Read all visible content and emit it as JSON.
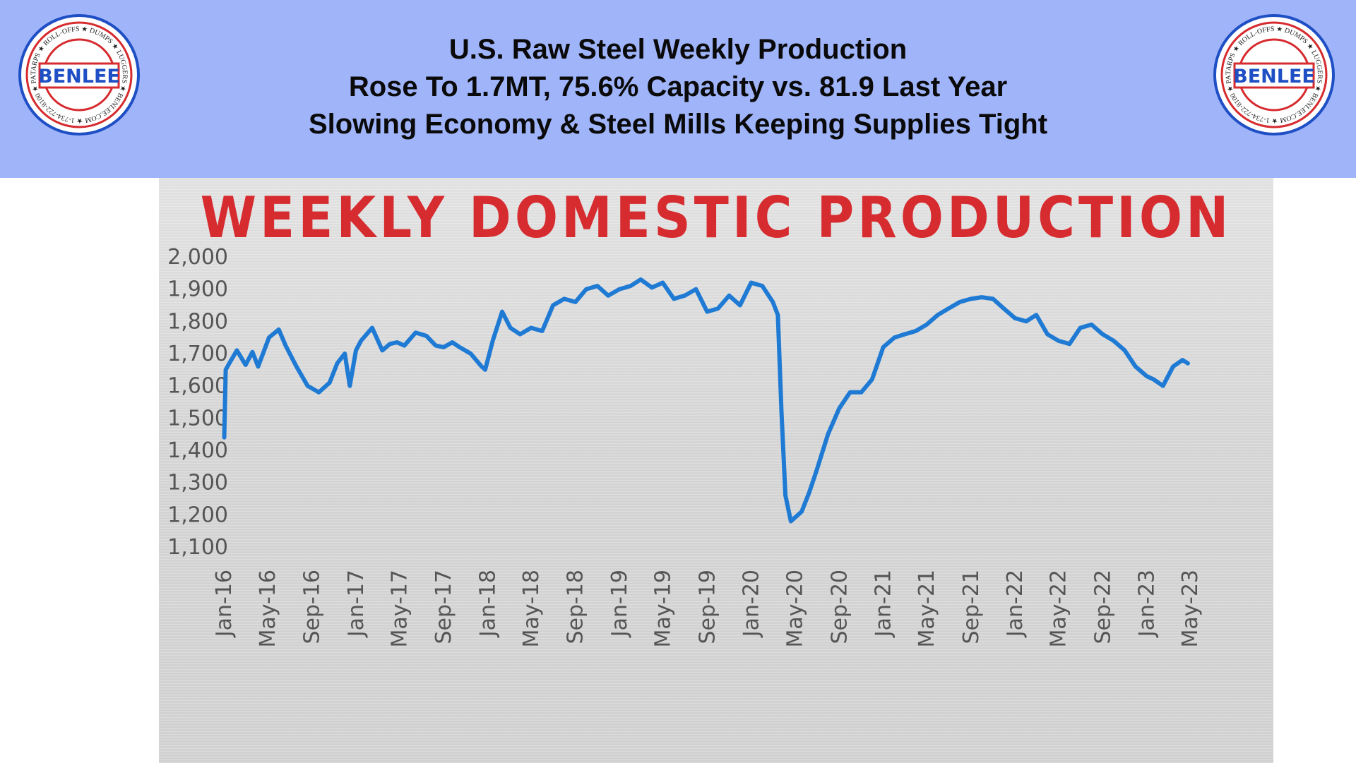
{
  "header": {
    "line1": "U.S. Raw Steel Weekly Production",
    "line2": "Rose To 1.7MT, 75.6% Capacity vs. 81.9 Last Year",
    "line3": "Slowing Economy & Steel Mills Keeping Supplies Tight"
  },
  "logo": {
    "brand": "BENLEE",
    "ring_text": "TARPS ★ ROLL-OFFS ★ DUMPS ★ LUGGERS ★ BENLEE.COM ★ 1-734-722-8100 ★ PARTS ★",
    "colors": {
      "ring": "#d62b2f",
      "brand": "#1f4fc4",
      "outline": "#1f4fc4"
    }
  },
  "colors": {
    "header_bg": "#a0b4fa",
    "title": "#d62b2f",
    "line": "#1f7ad4"
  },
  "chart_data": {
    "type": "line",
    "title": "WEEKLY DOMESTIC PRODUCTION",
    "xlabel": "",
    "ylabel": "",
    "ylim": [
      1100,
      2000
    ],
    "yticks": [
      "2,000",
      "1,900",
      "1,800",
      "1,700",
      "1,600",
      "1,500",
      "1,400",
      "1,300",
      "1,200",
      "1,100"
    ],
    "ytick_values": [
      2000,
      1900,
      1800,
      1700,
      1600,
      1500,
      1400,
      1300,
      1200,
      1100
    ],
    "xticks": [
      "Jan-16",
      "May-16",
      "Sep-16",
      "Jan-17",
      "May-17",
      "Sep-17",
      "Jan-18",
      "May-18",
      "Sep-18",
      "Jan-19",
      "May-19",
      "Sep-19",
      "Jan-20",
      "May-20",
      "Sep-20",
      "Jan-21",
      "May-21",
      "Sep-21",
      "Jan-22",
      "May-22",
      "Sep-22",
      "Jan-23",
      "May-23"
    ],
    "grid": false,
    "legend": "none",
    "series": [
      {
        "x": [
          "2016-01-02",
          "2016-01-06",
          "2016-01-16",
          "2016-02-06",
          "2016-03-01",
          "2016-03-20",
          "2016-04-05",
          "2016-05-05",
          "2016-06-01",
          "2016-06-20",
          "2016-07-20",
          "2016-08-20",
          "2016-09-20",
          "2016-10-20",
          "2016-11-10",
          "2016-12-01",
          "2016-12-15",
          "2017-01-01",
          "2017-01-15",
          "2017-02-15",
          "2017-03-15",
          "2017-04-05",
          "2017-04-25",
          "2017-05-15",
          "2017-06-15",
          "2017-07-15",
          "2017-08-10",
          "2017-09-01",
          "2017-09-25",
          "2017-10-15",
          "2017-11-15",
          "2017-12-15",
          "2017-12-25",
          "2018-01-15",
          "2018-02-10",
          "2018-03-05",
          "2018-04-01",
          "2018-05-01",
          "2018-06-01",
          "2018-07-01",
          "2018-08-01",
          "2018-09-01",
          "2018-10-01",
          "2018-11-01",
          "2018-12-01",
          "2019-01-01",
          "2019-02-01",
          "2019-03-01",
          "2019-04-01",
          "2019-05-01",
          "2019-06-01",
          "2019-07-01",
          "2019-08-01",
          "2019-09-01",
          "2019-10-01",
          "2019-11-01",
          "2019-12-01",
          "2020-01-01",
          "2020-02-01",
          "2020-03-01",
          "2020-03-15",
          "2020-03-25",
          "2020-04-05",
          "2020-04-20",
          "2020-05-05",
          "2020-05-20",
          "2020-06-10",
          "2020-07-01",
          "2020-08-01",
          "2020-09-01",
          "2020-10-01",
          "2020-11-01",
          "2020-12-01",
          "2021-01-01",
          "2021-02-01",
          "2021-03-01",
          "2021-04-01",
          "2021-05-01",
          "2021-06-01",
          "2021-07-01",
          "2021-08-01",
          "2021-09-01",
          "2021-10-01",
          "2021-11-01",
          "2021-12-01",
          "2022-01-01",
          "2022-02-01",
          "2022-03-01",
          "2022-04-01",
          "2022-05-01",
          "2022-06-01",
          "2022-07-01",
          "2022-08-01",
          "2022-09-01",
          "2022-10-01",
          "2022-11-01",
          "2022-12-01",
          "2023-01-01",
          "2023-01-20",
          "2023-02-15",
          "2023-03-15",
          "2023-04-10",
          "2023-04-25"
        ],
        "values": [
          1440,
          1650,
          1670,
          1710,
          1665,
          1705,
          1660,
          1750,
          1775,
          1725,
          1660,
          1600,
          1580,
          1610,
          1670,
          1700,
          1600,
          1710,
          1740,
          1780,
          1710,
          1730,
          1735,
          1725,
          1765,
          1755,
          1725,
          1720,
          1735,
          1720,
          1700,
          1660,
          1650,
          1740,
          1830,
          1780,
          1760,
          1780,
          1770,
          1850,
          1870,
          1860,
          1900,
          1910,
          1880,
          1900,
          1910,
          1930,
          1905,
          1920,
          1870,
          1880,
          1900,
          1830,
          1840,
          1880,
          1850,
          1920,
          1910,
          1860,
          1820,
          1520,
          1260,
          1180,
          1195,
          1210,
          1270,
          1340,
          1450,
          1530,
          1580,
          1580,
          1620,
          1720,
          1750,
          1760,
          1770,
          1790,
          1820,
          1840,
          1860,
          1870,
          1875,
          1870,
          1840,
          1810,
          1800,
          1820,
          1760,
          1740,
          1730,
          1780,
          1790,
          1760,
          1740,
          1710,
          1660,
          1630,
          1620,
          1600,
          1660,
          1680,
          1670
        ]
      }
    ]
  }
}
